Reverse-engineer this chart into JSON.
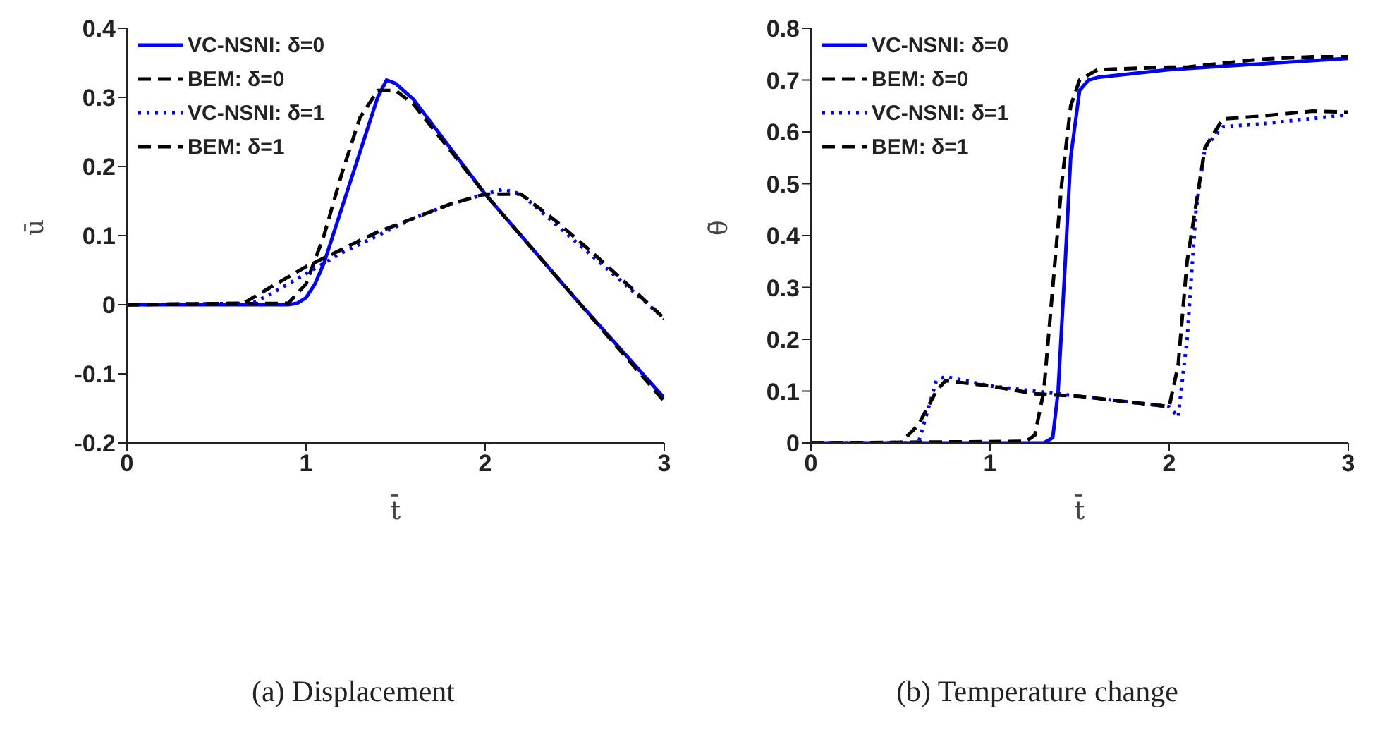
{
  "chart_data": [
    {
      "type": "line",
      "title": "(a) Displacement",
      "xlabel": "t̄",
      "ylabel": "ū",
      "xlim": [
        0,
        3
      ],
      "xticks": [
        0,
        1,
        2,
        3
      ],
      "ylim": [
        -0.2,
        0.4
      ],
      "yticks": [
        -0.2,
        -0.1,
        0,
        0.1,
        0.2,
        0.3,
        0.4
      ],
      "legend": "top left",
      "series": [
        {
          "name": "VC-NSNI: δ=0",
          "color": "#0000ff",
          "line_style": "solid",
          "x": [
            0,
            0.9,
            0.95,
            1.0,
            1.05,
            1.1,
            1.2,
            1.3,
            1.4,
            1.45,
            1.5,
            1.6,
            2.0,
            2.5,
            3.0
          ],
          "values": [
            0,
            0,
            0.002,
            0.01,
            0.03,
            0.06,
            0.14,
            0.22,
            0.3,
            0.325,
            0.32,
            0.297,
            0.16,
            0.01,
            -0.135
          ]
        },
        {
          "name": "BEM: δ=0",
          "color": "#000000",
          "line_style": "dashed",
          "x": [
            0,
            0.9,
            1.0,
            1.1,
            1.2,
            1.3,
            1.4,
            1.5,
            1.6,
            2.0,
            2.5,
            3.0
          ],
          "values": [
            0,
            0.002,
            0.03,
            0.1,
            0.19,
            0.27,
            0.31,
            0.31,
            0.29,
            0.16,
            0.01,
            -0.14
          ]
        },
        {
          "name": "VC-NSNI: δ=1",
          "color": "#0000ff",
          "line_style": "dotted",
          "x": [
            0,
            0.7,
            0.8,
            1.0,
            1.2,
            1.4,
            1.6,
            1.8,
            2.0,
            2.1,
            2.2,
            2.4,
            2.6,
            2.8,
            3.0
          ],
          "values": [
            0,
            0.002,
            0.015,
            0.045,
            0.075,
            0.1,
            0.125,
            0.145,
            0.16,
            0.167,
            0.16,
            0.115,
            0.07,
            0.025,
            -0.02
          ]
        },
        {
          "name": "BEM: δ=1",
          "color": "#000000",
          "line_style": "dashed",
          "x": [
            0,
            0.65,
            0.8,
            1.0,
            1.2,
            1.3,
            1.4,
            1.6,
            1.8,
            2.0,
            2.2,
            2.4,
            2.6,
            2.8,
            3.0
          ],
          "values": [
            0,
            0.002,
            0.025,
            0.055,
            0.08,
            0.093,
            0.105,
            0.125,
            0.145,
            0.16,
            0.16,
            0.12,
            0.075,
            0.028,
            -0.02
          ]
        }
      ]
    },
    {
      "type": "line",
      "title": "(b) Temperature change",
      "xlabel": "t̄",
      "ylabel": "θ̄",
      "xlim": [
        0,
        3
      ],
      "xticks": [
        0,
        1,
        2,
        3
      ],
      "ylim": [
        0,
        0.8
      ],
      "yticks": [
        0,
        0.1,
        0.2,
        0.3,
        0.4,
        0.5,
        0.6,
        0.7,
        0.8
      ],
      "legend": "top left",
      "series": [
        {
          "name": "VC-NSNI: δ=0",
          "color": "#0000ff",
          "line_style": "solid",
          "x": [
            0,
            1.3,
            1.35,
            1.38,
            1.42,
            1.45,
            1.5,
            1.55,
            1.6,
            2.0,
            3.0
          ],
          "values": [
            0,
            0,
            0.01,
            0.1,
            0.35,
            0.55,
            0.68,
            0.7,
            0.705,
            0.72,
            0.742
          ]
        },
        {
          "name": "BEM: δ=0",
          "color": "#000000",
          "line_style": "dashed",
          "x": [
            0,
            1.2,
            1.25,
            1.3,
            1.35,
            1.4,
            1.45,
            1.5,
            1.6,
            2.0,
            2.1,
            2.5,
            2.8,
            3.0
          ],
          "values": [
            0,
            0.003,
            0.015,
            0.1,
            0.3,
            0.5,
            0.65,
            0.7,
            0.72,
            0.725,
            0.725,
            0.74,
            0.745,
            0.745
          ]
        },
        {
          "name": "VC-NSNI: δ=1",
          "color": "#0000ff",
          "line_style": "dotted",
          "x": [
            0,
            0.6,
            0.65,
            0.7,
            0.75,
            1.0,
            1.5,
            2.0,
            2.05,
            2.1,
            2.15,
            2.2,
            2.3,
            2.5,
            3.0
          ],
          "values": [
            0,
            0,
            0.06,
            0.12,
            0.128,
            0.11,
            0.09,
            0.07,
            0.05,
            0.2,
            0.45,
            0.57,
            0.61,
            0.615,
            0.633
          ]
        },
        {
          "name": "BEM: δ=1",
          "color": "#000000",
          "line_style": "dashed",
          "x": [
            0,
            0.5,
            0.6,
            0.7,
            0.75,
            1.0,
            1.25,
            1.5,
            2.0,
            2.05,
            2.1,
            2.2,
            2.3,
            2.5,
            2.8,
            3.0
          ],
          "values": [
            0,
            0,
            0.035,
            0.1,
            0.12,
            0.11,
            0.095,
            0.09,
            0.07,
            0.15,
            0.35,
            0.57,
            0.625,
            0.63,
            0.64,
            0.638
          ]
        }
      ]
    }
  ]
}
